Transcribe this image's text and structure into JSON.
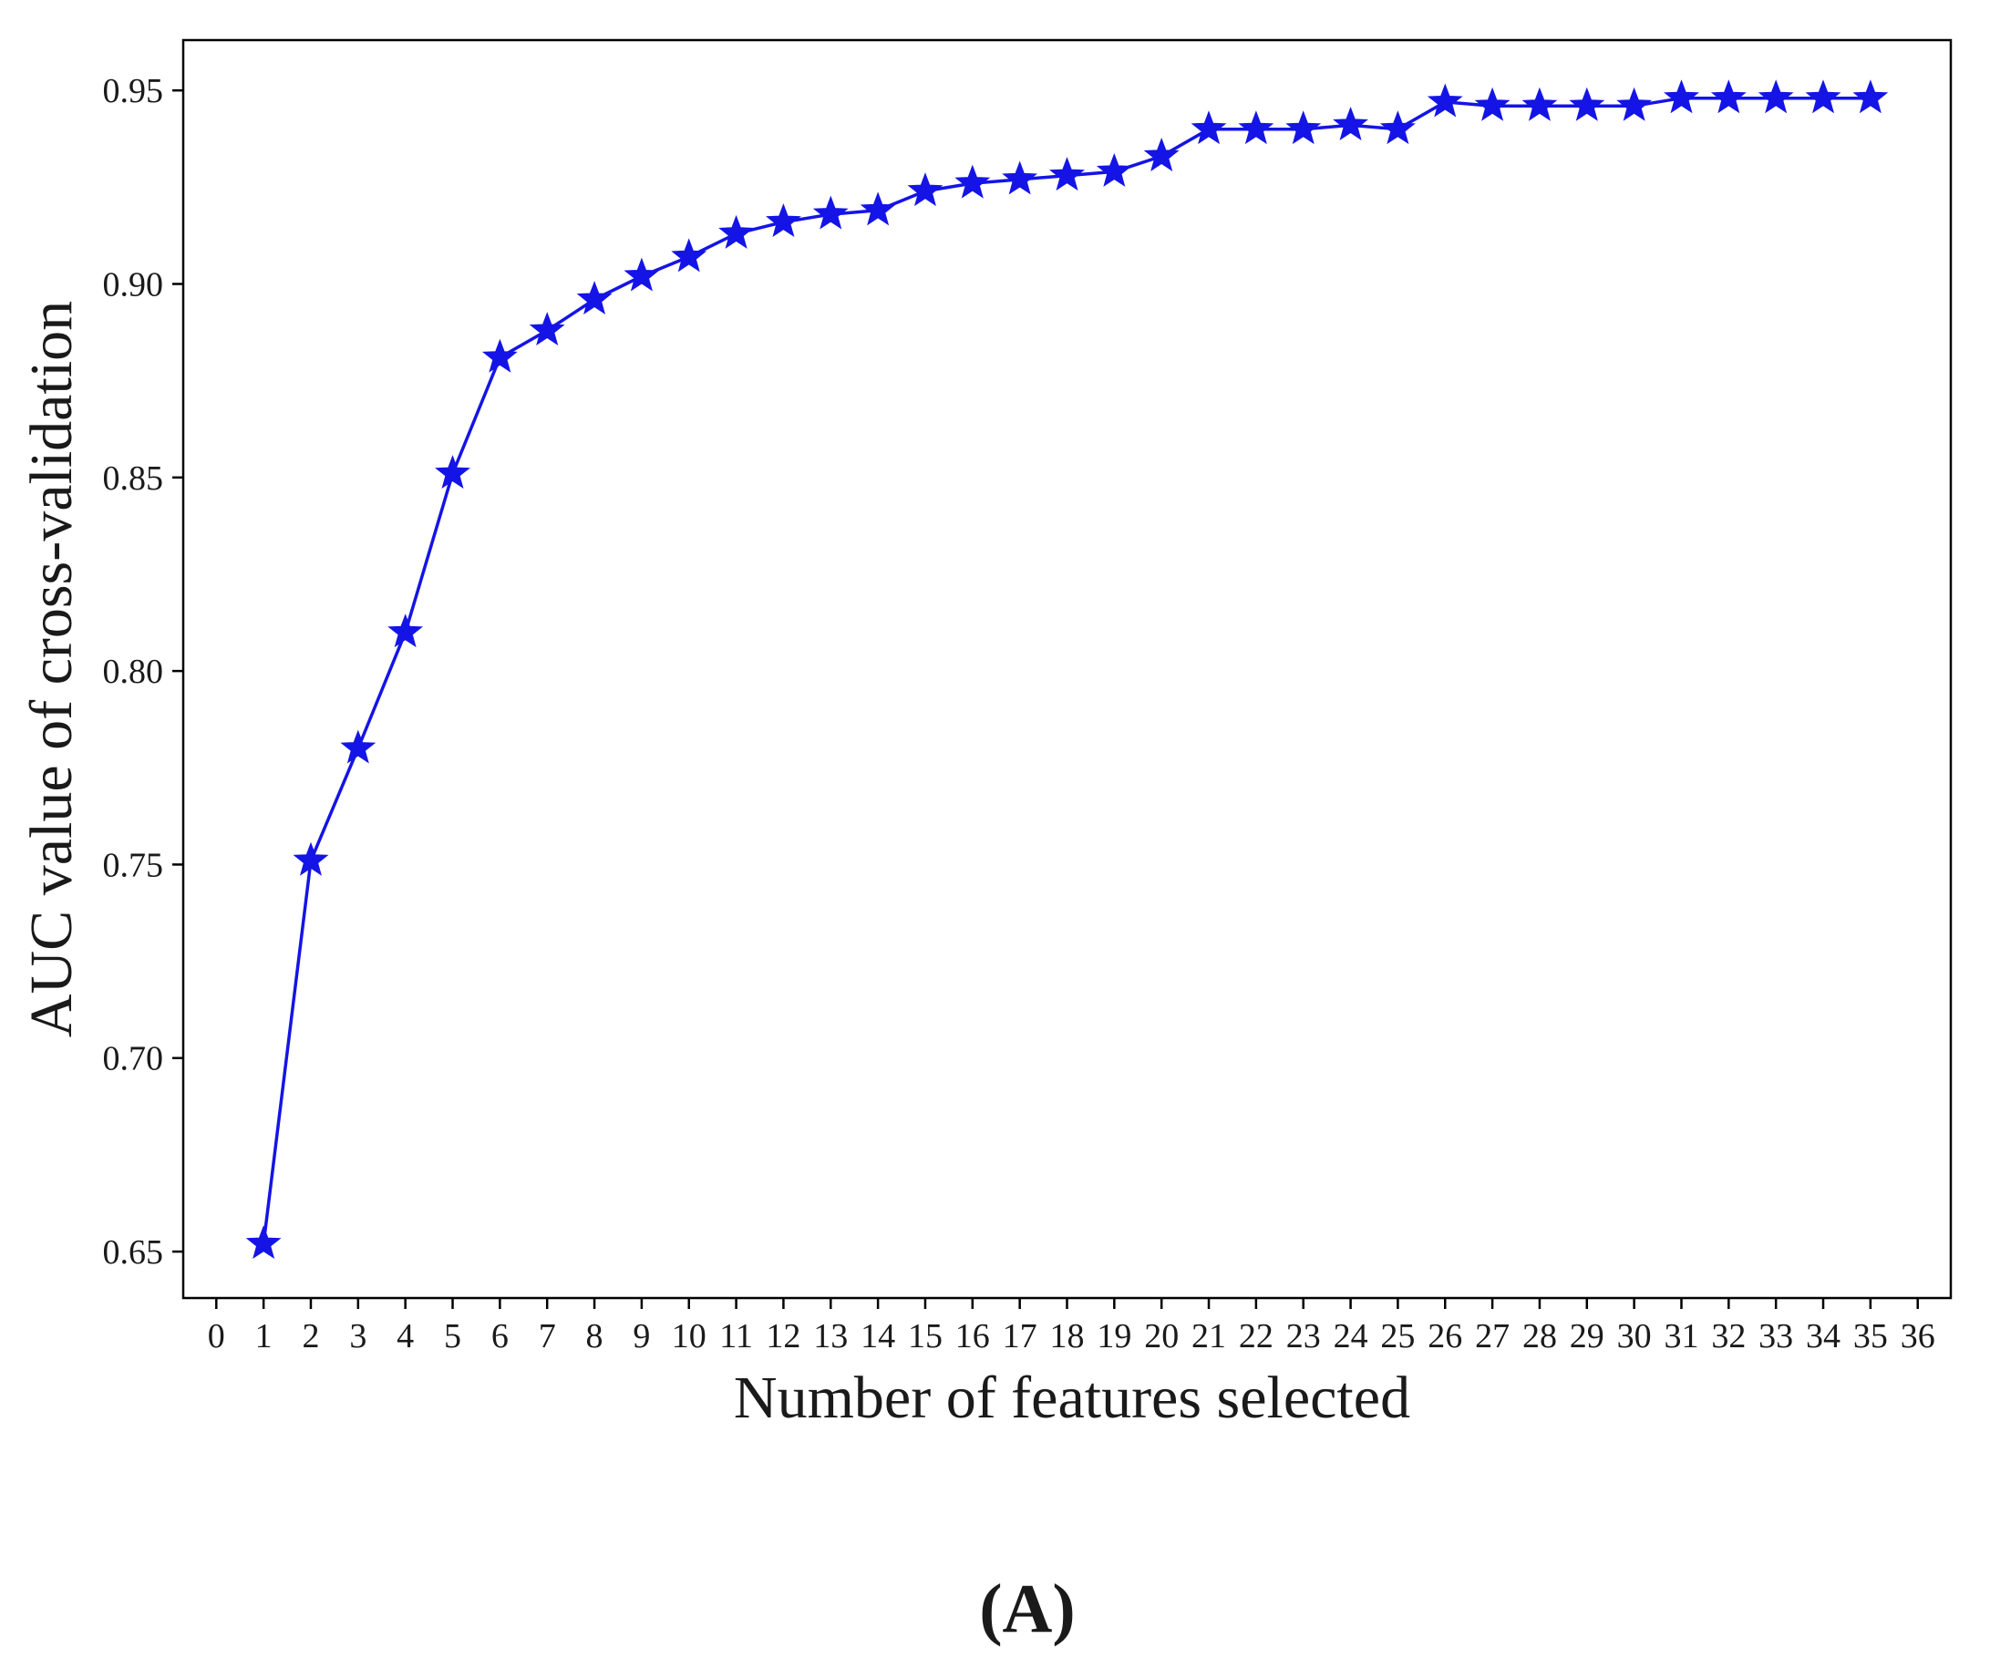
{
  "chart_data": {
    "type": "line",
    "title": "",
    "xlabel": "Number of features selected",
    "ylabel": "AUC value of cross-validation",
    "panel_label": "(A)",
    "xlim": [
      -0.7,
      36.7
    ],
    "ylim": [
      0.638,
      0.963
    ],
    "x_ticks": [
      0,
      1,
      2,
      3,
      4,
      5,
      6,
      7,
      8,
      9,
      10,
      11,
      12,
      13,
      14,
      15,
      16,
      17,
      18,
      19,
      20,
      21,
      22,
      23,
      24,
      25,
      26,
      27,
      28,
      29,
      30,
      31,
      32,
      33,
      34,
      35,
      36
    ],
    "y_ticks": [
      "0.65",
      "0.70",
      "0.75",
      "0.80",
      "0.85",
      "0.90",
      "0.95"
    ],
    "grid": false,
    "series_color": "#1414e6",
    "marker": "star",
    "x": [
      1,
      2,
      3,
      4,
      5,
      6,
      7,
      8,
      9,
      10,
      11,
      12,
      13,
      14,
      15,
      16,
      17,
      18,
      19,
      20,
      21,
      22,
      23,
      24,
      25,
      26,
      27,
      28,
      29,
      30,
      31,
      32,
      33,
      34,
      35
    ],
    "y": [
      0.652,
      0.751,
      0.78,
      0.81,
      0.851,
      0.881,
      0.888,
      0.896,
      0.902,
      0.907,
      0.913,
      0.916,
      0.918,
      0.919,
      0.924,
      0.926,
      0.927,
      0.928,
      0.929,
      0.933,
      0.94,
      0.94,
      0.94,
      0.941,
      0.94,
      0.947,
      0.946,
      0.946,
      0.946,
      0.946,
      0.948,
      0.948,
      0.948,
      0.948,
      0.948
    ]
  }
}
